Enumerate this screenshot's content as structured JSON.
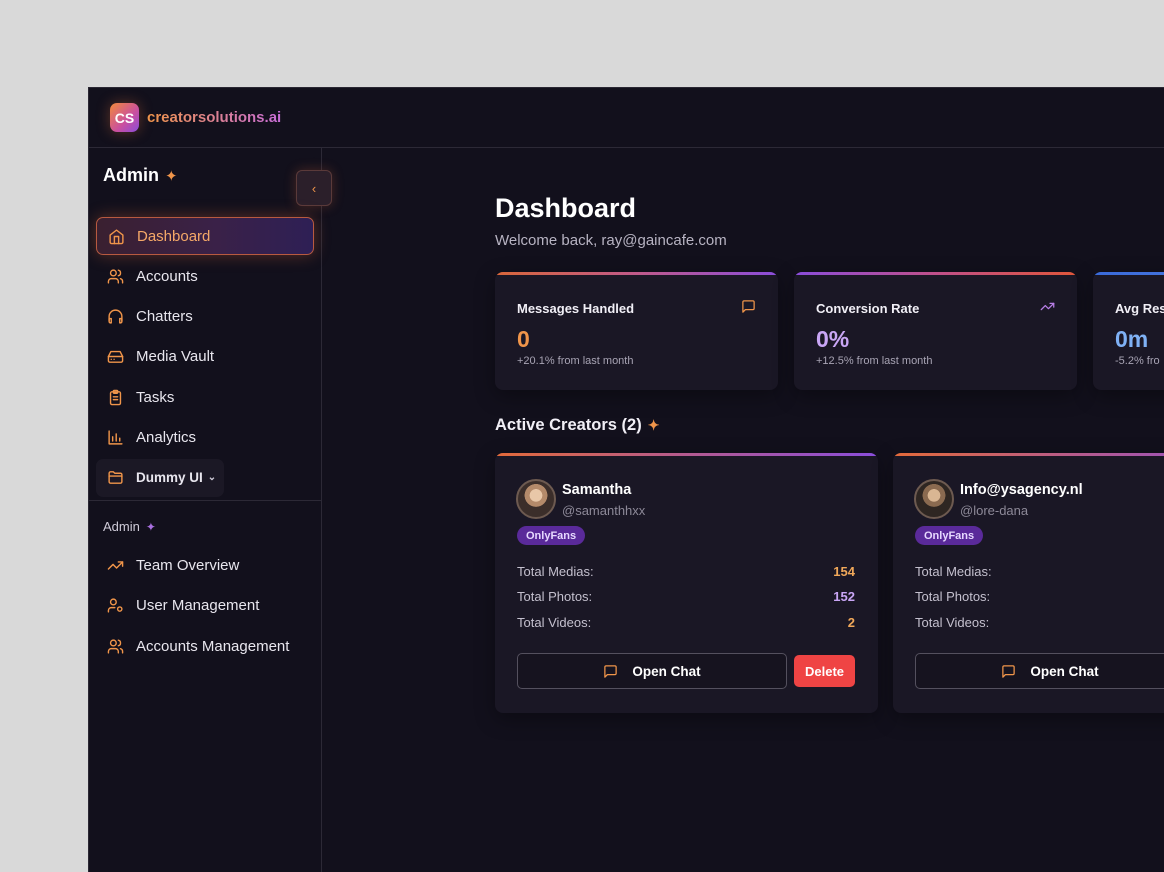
{
  "app": {
    "logo_initials": "CS",
    "name": "creatorsolutions.ai"
  },
  "sidebar": {
    "title": "Admin",
    "items": [
      {
        "label": "Dashboard",
        "icon": "home-icon",
        "active": true
      },
      {
        "label": "Accounts",
        "icon": "users-icon"
      },
      {
        "label": "Chatters",
        "icon": "headphones-icon"
      },
      {
        "label": "Media Vault",
        "icon": "hard-drive-icon"
      },
      {
        "label": "Tasks",
        "icon": "clipboard-icon"
      },
      {
        "label": "Analytics",
        "icon": "bar-chart-icon"
      },
      {
        "label": "Dummy UI",
        "icon": "folder-icon",
        "dropdown": true
      }
    ],
    "admin_section_label": "Admin",
    "admin_items": [
      {
        "label": "Team Overview",
        "icon": "trending-up-icon"
      },
      {
        "label": "User Management",
        "icon": "user-cog-icon"
      },
      {
        "label": "Accounts Management",
        "icon": "users-icon"
      }
    ]
  },
  "main": {
    "title": "Dashboard",
    "welcome": "Welcome back, ray@gaincafe.com",
    "stats": [
      {
        "label": "Messages Handled",
        "value": "0",
        "delta": "+20.1% from last month",
        "icon": "message-square-icon",
        "value_color": "#f0954a"
      },
      {
        "label": "Conversion Rate",
        "value": "0%",
        "delta": "+12.5% from last month",
        "icon": "trending-up-icon",
        "value_color": "#c9a6f5"
      },
      {
        "label": "Avg Resp",
        "value": "0m",
        "delta": "-5.2% fro",
        "icon": "",
        "value_color": "#7fb1f5"
      }
    ],
    "active_creators_title": "Active Creators (2)",
    "creators": [
      {
        "name": "Samantha",
        "handle": "@samanthhxx",
        "platform": "OnlyFans",
        "stats": [
          {
            "label": "Total Medias:",
            "value": "154",
            "color": "#f0a85a"
          },
          {
            "label": "Total Photos:",
            "value": "152",
            "color": "#c9a6f5"
          },
          {
            "label": "Total Videos:",
            "value": "2",
            "color": "#f0a85a"
          }
        ],
        "open_chat_label": "Open Chat",
        "delete_label": "Delete"
      },
      {
        "name": "Info@ysagency.nl",
        "handle": "@lore-dana",
        "platform": "OnlyFans",
        "stats": [
          {
            "label": "Total Medias:",
            "value": "",
            "color": "#f0a85a"
          },
          {
            "label": "Total Photos:",
            "value": "",
            "color": "#c9a6f5"
          },
          {
            "label": "Total Videos:",
            "value": "",
            "color": "#f0a85a"
          }
        ],
        "open_chat_label": "Open Chat"
      }
    ]
  },
  "colors": {
    "accent": "#f0954a",
    "purple": "#8a4ddb",
    "background": "#12101c",
    "card": "#1a1725",
    "danger": "#ef4444"
  }
}
